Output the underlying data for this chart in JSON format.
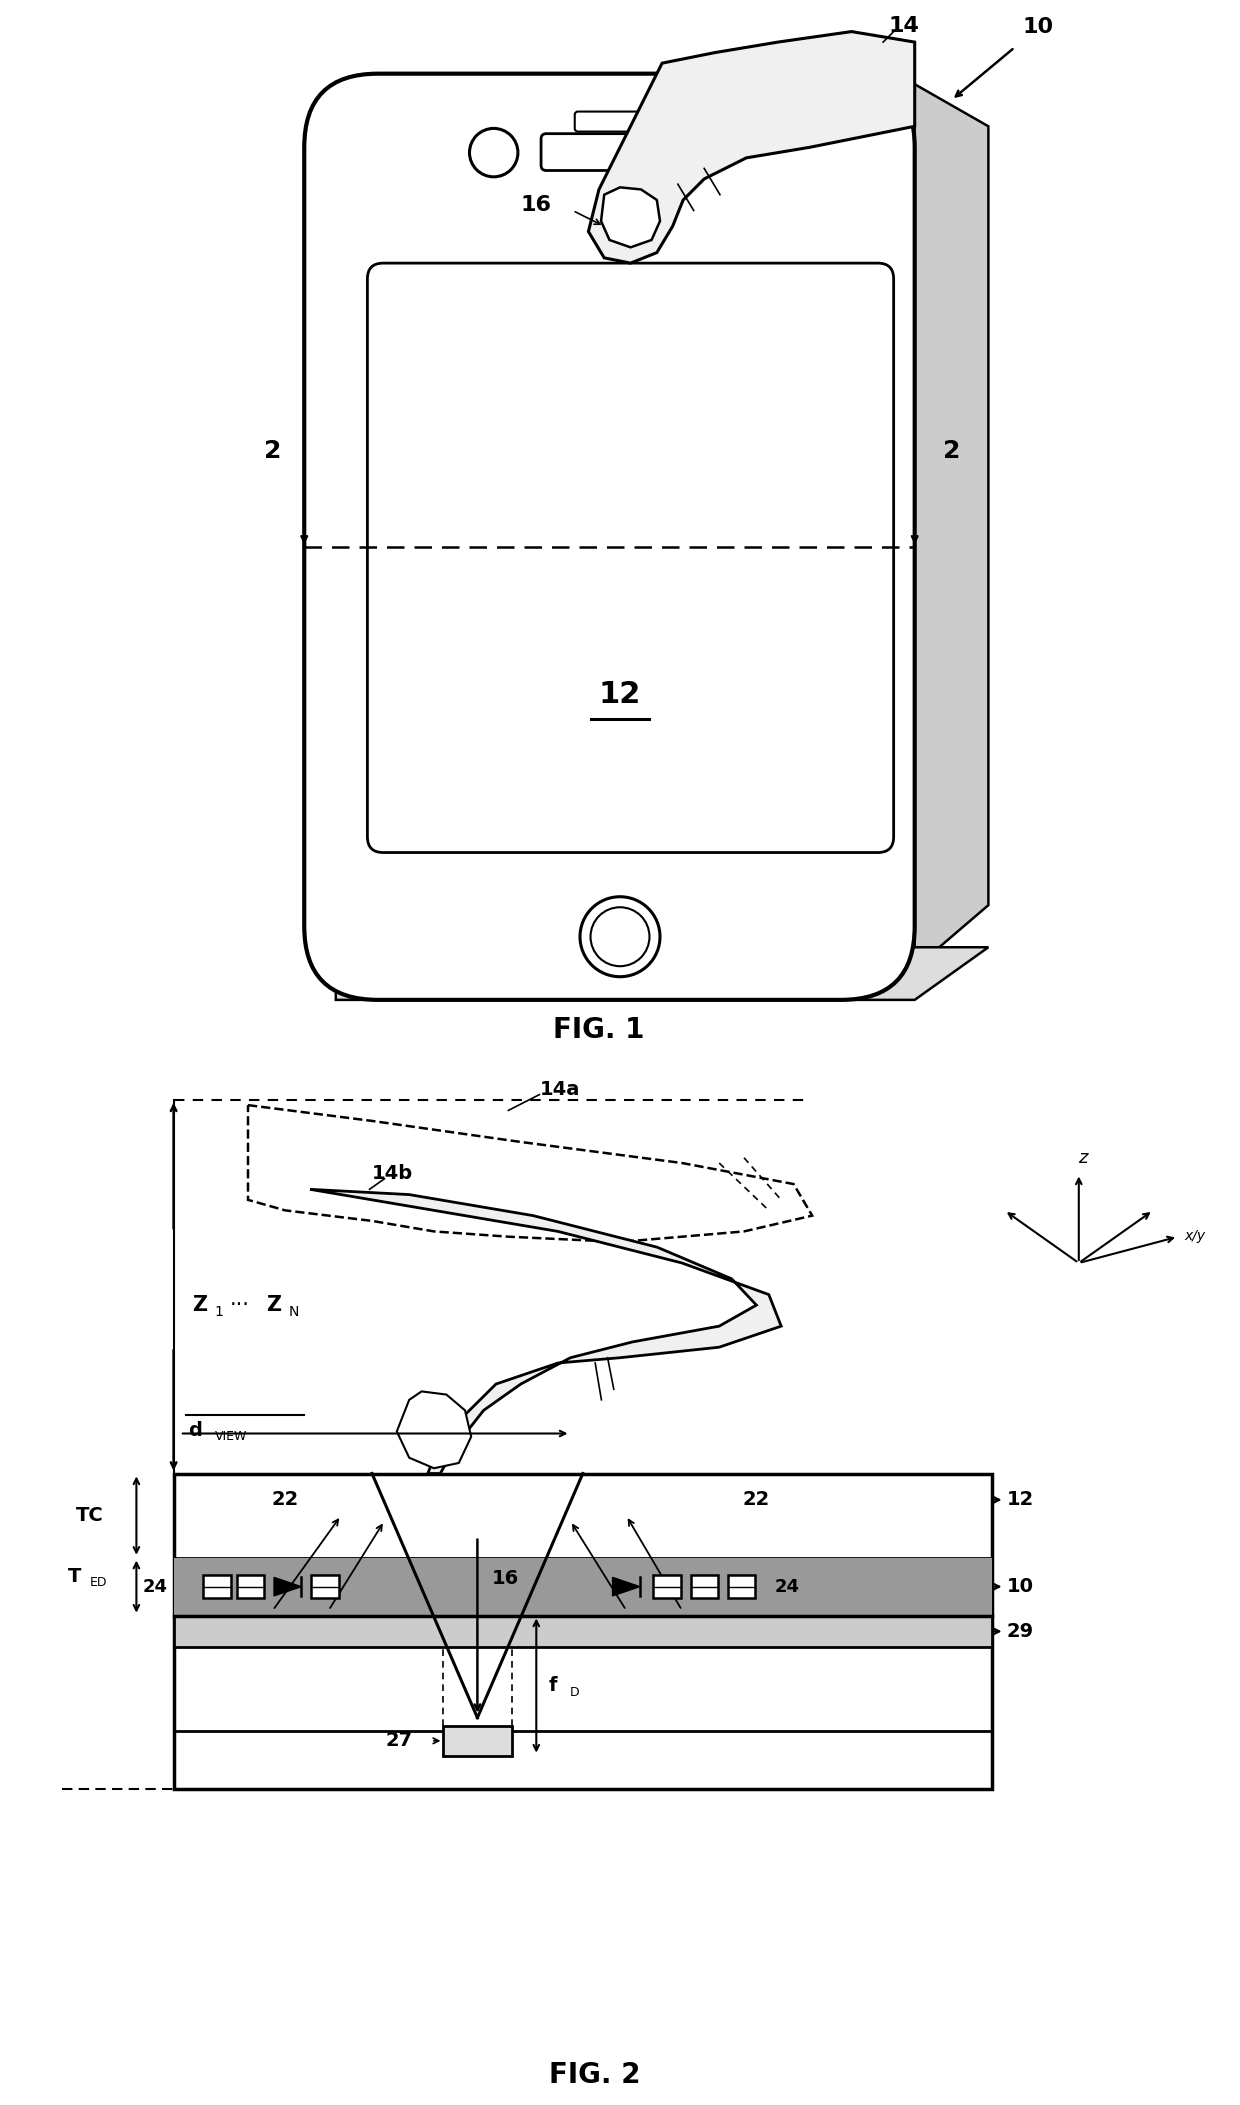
{
  "colors": {
    "black": "#000000",
    "white": "#ffffff",
    "light_gray": "#e8e8e8",
    "mid_gray": "#aaaaaa",
    "bg": "#ffffff"
  },
  "fig1": {
    "fig_label": "FIG. 1",
    "label_10": "10",
    "label_12": "12",
    "label_14": "14",
    "label_16": "16",
    "label_2": "2"
  },
  "fig2": {
    "fig_label": "FIG. 2",
    "label_14a": "14a",
    "label_14b": "14b",
    "label_z1": "Z",
    "label_zn": "Z",
    "label_dots": "...",
    "label_dview": "d",
    "label_view_sub": "VIEW",
    "label_tc": "TC",
    "label_ted": "T",
    "label_ed_sub": "ED",
    "label_22": "22",
    "label_24": "24",
    "label_16": "16",
    "label_27": "27",
    "label_fd": "f",
    "label_d_sub": "D",
    "label_12": "12",
    "label_10": "10",
    "label_29": "29"
  }
}
